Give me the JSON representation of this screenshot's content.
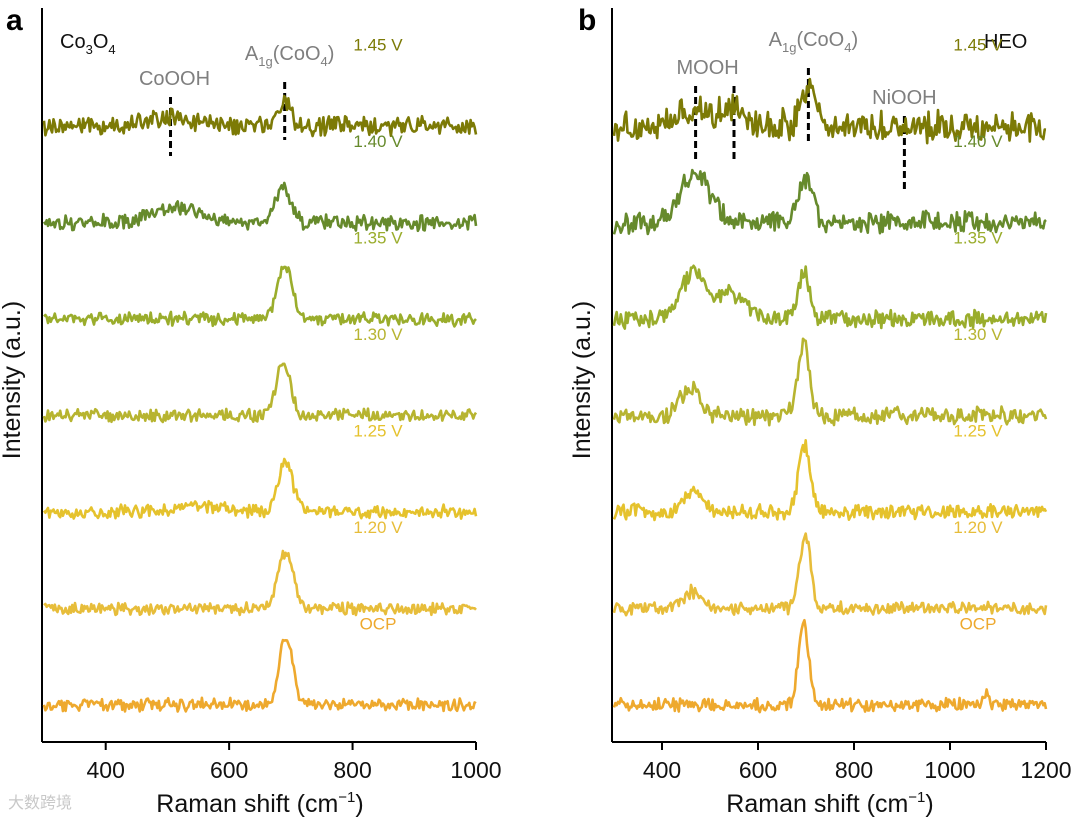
{
  "colors": {
    "1.45 V": "#7c7a06",
    "1.40 V": "#668a2c",
    "1.35 V": "#9aad2c",
    "1.30 V": "#b7b430",
    "1.25 V": "#e5c22d",
    "1.20 V": "#e7bd3a",
    "OCP": "#eea92e"
  },
  "watermark": "大数跨境",
  "chart_data": [
    {
      "panel": "a",
      "type": "line",
      "sample_prefix": "Co",
      "sample_sub1": "3",
      "sample_mid": "O",
      "sample_sub2": "4",
      "xlabel_main": "Raman shift (cm",
      "xlabel_sup": "−1",
      "xlabel_close": ")",
      "ylabel": "Intensity (a.u.)",
      "xlim": [
        300,
        1000
      ],
      "xticks": [
        "400",
        "600",
        "800",
        "1000"
      ],
      "xtick_values": [
        400,
        600,
        800,
        1000
      ],
      "annotations": [
        {
          "text": "CoOOH",
          "x": 505
        },
        {
          "a_main": "A",
          "a_sub": "1g",
          "a_open": "(CoO",
          "a_sub2": "4",
          "a_close": ")",
          "x": 690
        }
      ],
      "series": [
        {
          "name": "1.45 V",
          "offset": 6.0,
          "peaks": [
            [
              505,
              0.12,
              35
            ],
            [
              690,
              0.35,
              10
            ]
          ],
          "noise": 0.1
        },
        {
          "name": "1.40 V",
          "offset": 5.0,
          "peaks": [
            [
              520,
              0.2,
              40
            ],
            [
              688,
              0.5,
              12
            ]
          ],
          "noise": 0.08
        },
        {
          "name": "1.35 V",
          "offset": 4.0,
          "peaks": [
            [
              690,
              0.75,
              12
            ]
          ],
          "noise": 0.07
        },
        {
          "name": "1.30 V",
          "offset": 3.0,
          "peaks": [
            [
              688,
              0.75,
              11
            ]
          ],
          "noise": 0.07
        },
        {
          "name": "1.25 V",
          "offset": 2.0,
          "peaks": [
            [
              545,
              0.08,
              40
            ],
            [
              691,
              0.7,
              12
            ]
          ],
          "noise": 0.07
        },
        {
          "name": "1.20 V",
          "offset": 1.0,
          "peaks": [
            [
              691,
              0.8,
              12
            ]
          ],
          "noise": 0.07
        },
        {
          "name": "OCP",
          "offset": 0.0,
          "peaks": [
            [
              692,
              0.95,
              11
            ]
          ],
          "noise": 0.07
        }
      ]
    },
    {
      "panel": "b",
      "type": "line",
      "sample_name": "HEO",
      "xlabel_main": "Raman shift (cm",
      "xlabel_sup": "−1",
      "xlabel_close": ")",
      "ylabel": "Intensity (a.u.)",
      "xlim": [
        300,
        1200
      ],
      "xticks": [
        "400",
        "600",
        "800",
        "1000",
        "1200"
      ],
      "xtick_values": [
        400,
        600,
        800,
        1000,
        1200
      ],
      "annotations": [
        {
          "text": "MOOH",
          "x": 470
        },
        {
          "text": "",
          "x": 550
        },
        {
          "a_main": "A",
          "a_sub": "1g",
          "a_open": "(CoO",
          "a_sub2": "4",
          "a_close": ")",
          "x": 705
        },
        {
          "text": "NiOOH",
          "x": 905
        }
      ],
      "series": [
        {
          "name": "1.45 V",
          "offset": 6.0,
          "peaks": [
            [
              470,
              0.2,
              30
            ],
            [
              550,
              0.25,
              25
            ],
            [
              705,
              0.5,
              15
            ]
          ],
          "noise": 0.15
        },
        {
          "name": "1.40 V",
          "offset": 5.0,
          "peaks": [
            [
              470,
              0.6,
              30
            ],
            [
              700,
              0.55,
              14
            ]
          ],
          "noise": 0.1
        },
        {
          "name": "1.35 V",
          "offset": 4.0,
          "peaks": [
            [
              465,
              0.55,
              25
            ],
            [
              540,
              0.3,
              30
            ],
            [
              695,
              0.55,
              12
            ]
          ],
          "noise": 0.08
        },
        {
          "name": "1.30 V",
          "offset": 3.0,
          "peaks": [
            [
              460,
              0.35,
              20
            ],
            [
              695,
              0.85,
              12
            ]
          ],
          "noise": 0.08
        },
        {
          "name": "1.25 V",
          "offset": 2.0,
          "peaks": [
            [
              463,
              0.25,
              20
            ],
            [
              697,
              0.8,
              12
            ]
          ],
          "noise": 0.07
        },
        {
          "name": "1.20 V",
          "offset": 1.0,
          "peaks": [
            [
              465,
              0.2,
              20
            ],
            [
              698,
              0.85,
              12
            ]
          ],
          "noise": 0.06
        },
        {
          "name": "OCP",
          "offset": 0.0,
          "peaks": [
            [
              695,
              0.95,
              11
            ],
            [
              1075,
              0.15,
              6
            ]
          ],
          "noise": 0.06
        }
      ]
    }
  ]
}
